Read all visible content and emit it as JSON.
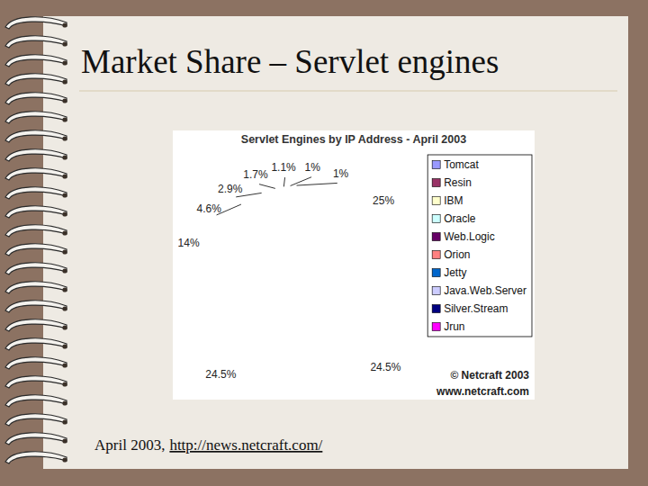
{
  "slide_title": "Market Share – Servlet engines",
  "caption": "April 2003,",
  "link": "http://news.netcraft.com/",
  "chart_data": {
    "type": "pie",
    "title": "Servlet Engines by IP Address - April 2003",
    "categories": [
      "Tomcat",
      "Resin",
      "IBM",
      "Oracle",
      "Web.Logic",
      "Orion",
      "Jetty",
      "Java.Web.Server",
      "Silver.Stream",
      "Jrun"
    ],
    "values": [
      25,
      24.5,
      24.5,
      14,
      4.6,
      2.9,
      1.7,
      1.1,
      1,
      1
    ],
    "value_labels": [
      "25%",
      "24.5%",
      "24.5%",
      "14%",
      "4.6%",
      "2.9%",
      "1.7%",
      "1.1%",
      "1%",
      "1%"
    ],
    "colors": [
      "#9999ff",
      "#993366",
      "#ffffcc",
      "#ccffff",
      "#660066",
      "#ff8080",
      "#0066cc",
      "#ccccff",
      "#000080",
      "#ff00ff"
    ],
    "data_labels": true,
    "legend": "right",
    "annotations": [
      "© Netcraft 2003",
      "www.netcraft.com"
    ]
  }
}
